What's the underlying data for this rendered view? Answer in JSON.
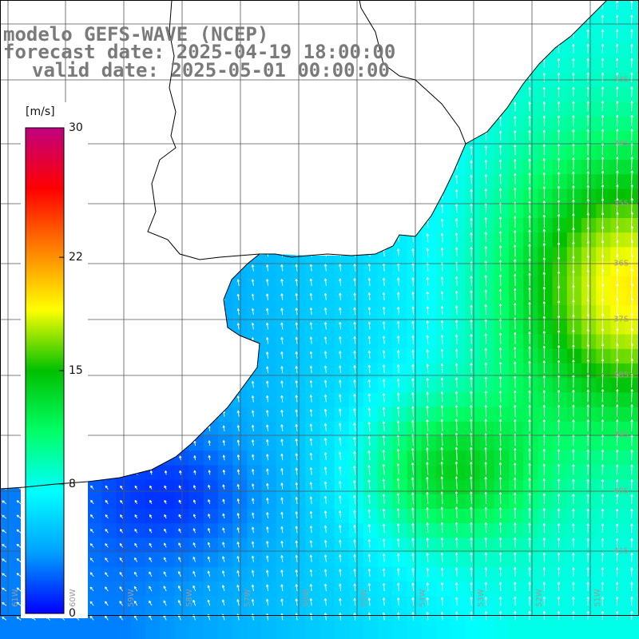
{
  "title": {
    "model": "modelo GEFS-WAVE (NCEP)",
    "forecast": "forecast date: 2025-04-19 18:00:00",
    "valid": "valid date: 2025-05-01 00:00:00"
  },
  "colorbar": {
    "unit": "[m/s]",
    "ticks": [
      "30",
      "22",
      "15",
      "8",
      "0"
    ],
    "tick_values": [
      30,
      22,
      15,
      8,
      0
    ],
    "min": 0,
    "max": 30,
    "colors": [
      "#0000ff",
      "#00a0ff",
      "#00ffff",
      "#00ff66",
      "#00c000",
      "#ffff00",
      "#ff8000",
      "#ff0000",
      "#c00080"
    ]
  },
  "lat_labels": [
    "32S",
    "33S",
    "34S",
    "35S",
    "36S",
    "37S",
    "38S",
    "39S",
    "40S",
    "41S"
  ],
  "lon_labels": [
    "61W",
    "60W",
    "59W",
    "58W",
    "57W",
    "56W",
    "55W",
    "54W",
    "53W",
    "52W",
    "51W"
  ],
  "colors": {
    "land": "#ffffff",
    "coast": "#000000",
    "grid": "#555555",
    "arrow": "#ffffff",
    "title": "#7a7a7a"
  }
}
